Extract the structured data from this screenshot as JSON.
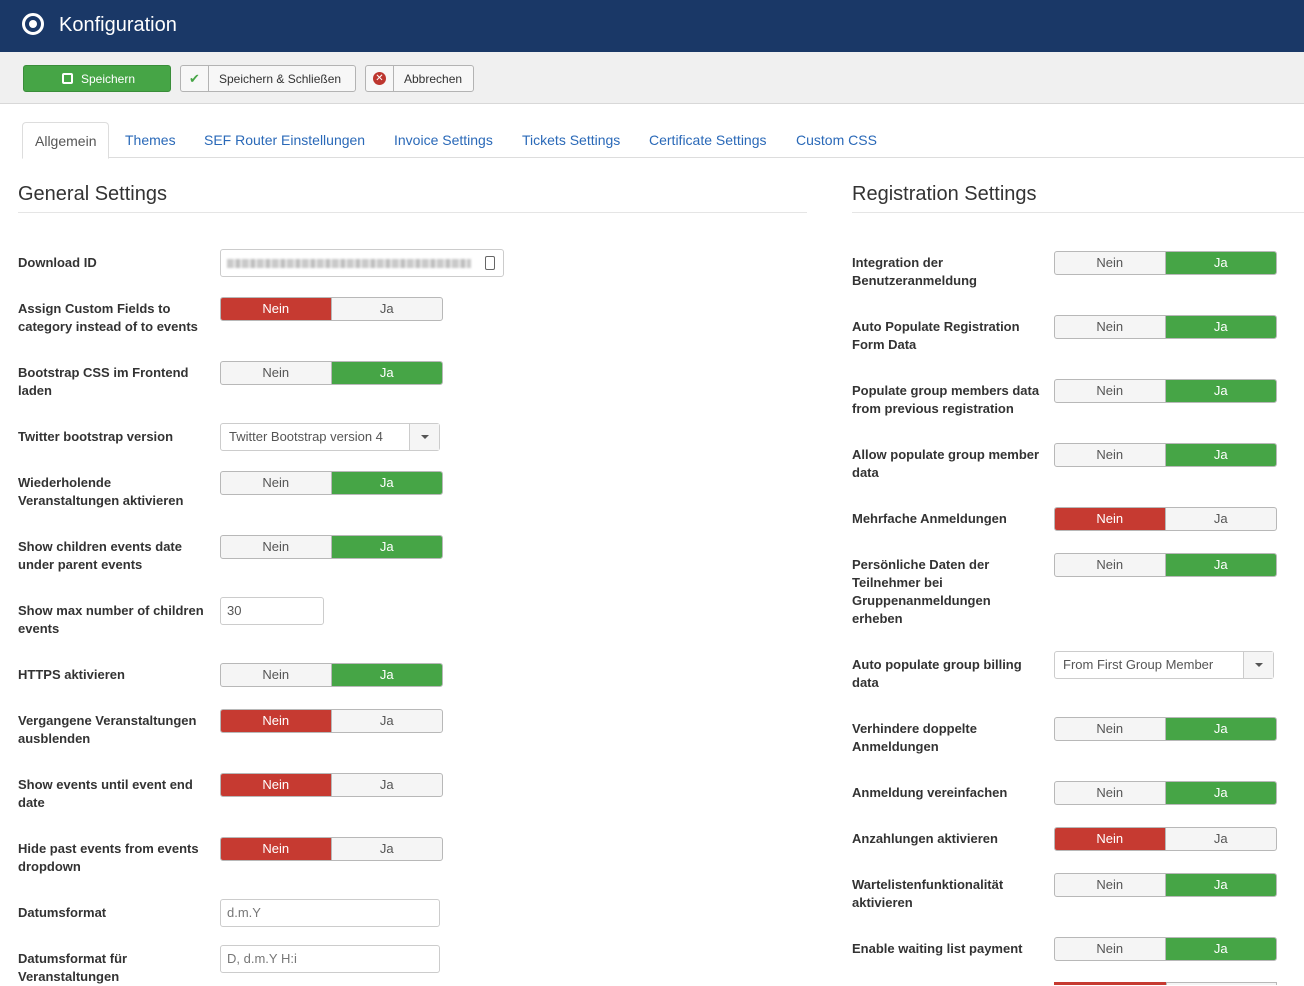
{
  "header": {
    "title": "Konfiguration"
  },
  "toolbar": {
    "save": "Speichern",
    "save_close": "Speichern & Schließen",
    "cancel": "Abbrechen"
  },
  "tabs": [
    "Allgemein",
    "Themes",
    "SEF Router Einstellungen",
    "Invoice Settings",
    "Tickets Settings",
    "Certificate Settings",
    "Custom CSS"
  ],
  "toggle_labels": {
    "no": "Nein",
    "yes": "Ja"
  },
  "general": {
    "title": "General Settings",
    "download_id": {
      "label": "Download ID"
    },
    "custom_fields": {
      "label": "Assign Custom Fields to category instead of to events",
      "value": "Nein"
    },
    "bootstrap_css": {
      "label": "Bootstrap CSS im Frontend laden",
      "value": "Ja"
    },
    "twitter_version": {
      "label": "Twitter bootstrap version",
      "value": "Twitter Bootstrap version 4"
    },
    "recurring": {
      "label": "Wiederholende Veranstaltungen aktivieren",
      "value": "Ja"
    },
    "children_date": {
      "label": "Show children events date under parent events",
      "value": "Ja"
    },
    "max_children": {
      "label": "Show max number of children events",
      "value": "30"
    },
    "https": {
      "label": "HTTPS aktivieren",
      "value": "Ja"
    },
    "hide_past": {
      "label": "Vergangene Veranstaltungen ausblenden",
      "value": "Nein"
    },
    "until_end": {
      "label": "Show events until event end date",
      "value": "Nein"
    },
    "hide_past_dropdown": {
      "label": "Hide past events from events dropdown",
      "value": "Nein"
    },
    "date_format": {
      "label": "Datumsformat",
      "placeholder": "d.m.Y"
    },
    "event_date_format": {
      "label": "Datumsformat für Veranstaltungen",
      "placeholder": "D, d.m.Y H:i"
    }
  },
  "registration": {
    "title": "Registration Settings",
    "user_integration": {
      "label": "Integration der Benutzeranmeldung",
      "value": "Ja"
    },
    "auto_populate": {
      "label": "Auto Populate Registration Form Data",
      "value": "Ja"
    },
    "group_members_prev": {
      "label": "Populate group members data from previous registration",
      "value": "Ja"
    },
    "allow_group_populate": {
      "label": "Allow populate group member data",
      "value": "Ja"
    },
    "multiple": {
      "label": "Mehrfache Anmeldungen",
      "value": "Nein"
    },
    "personal_data": {
      "label": "Persönliche Daten der Teilnehmer bei Gruppenanmeldungen erheben",
      "value": "Ja"
    },
    "group_billing": {
      "label": "Auto populate group billing data",
      "value": "From First Group Member"
    },
    "prevent_duplicate": {
      "label": "Verhindere doppelte Anmeldungen",
      "value": "Ja"
    },
    "simplify": {
      "label": "Anmeldung vereinfachen",
      "value": "Ja"
    },
    "deposits": {
      "label": "Anzahlungen aktivieren",
      "value": "Nein"
    },
    "waitlist": {
      "label": "Wartelistenfunktionalität aktivieren",
      "value": "Ja"
    },
    "waitlist_payment": {
      "label": "Enable waiting list payment",
      "value": "Ja"
    }
  },
  "colors": {
    "header": "#1a3867",
    "green": "#46a546",
    "red": "#c63a31",
    "link": "#2a69b8"
  }
}
